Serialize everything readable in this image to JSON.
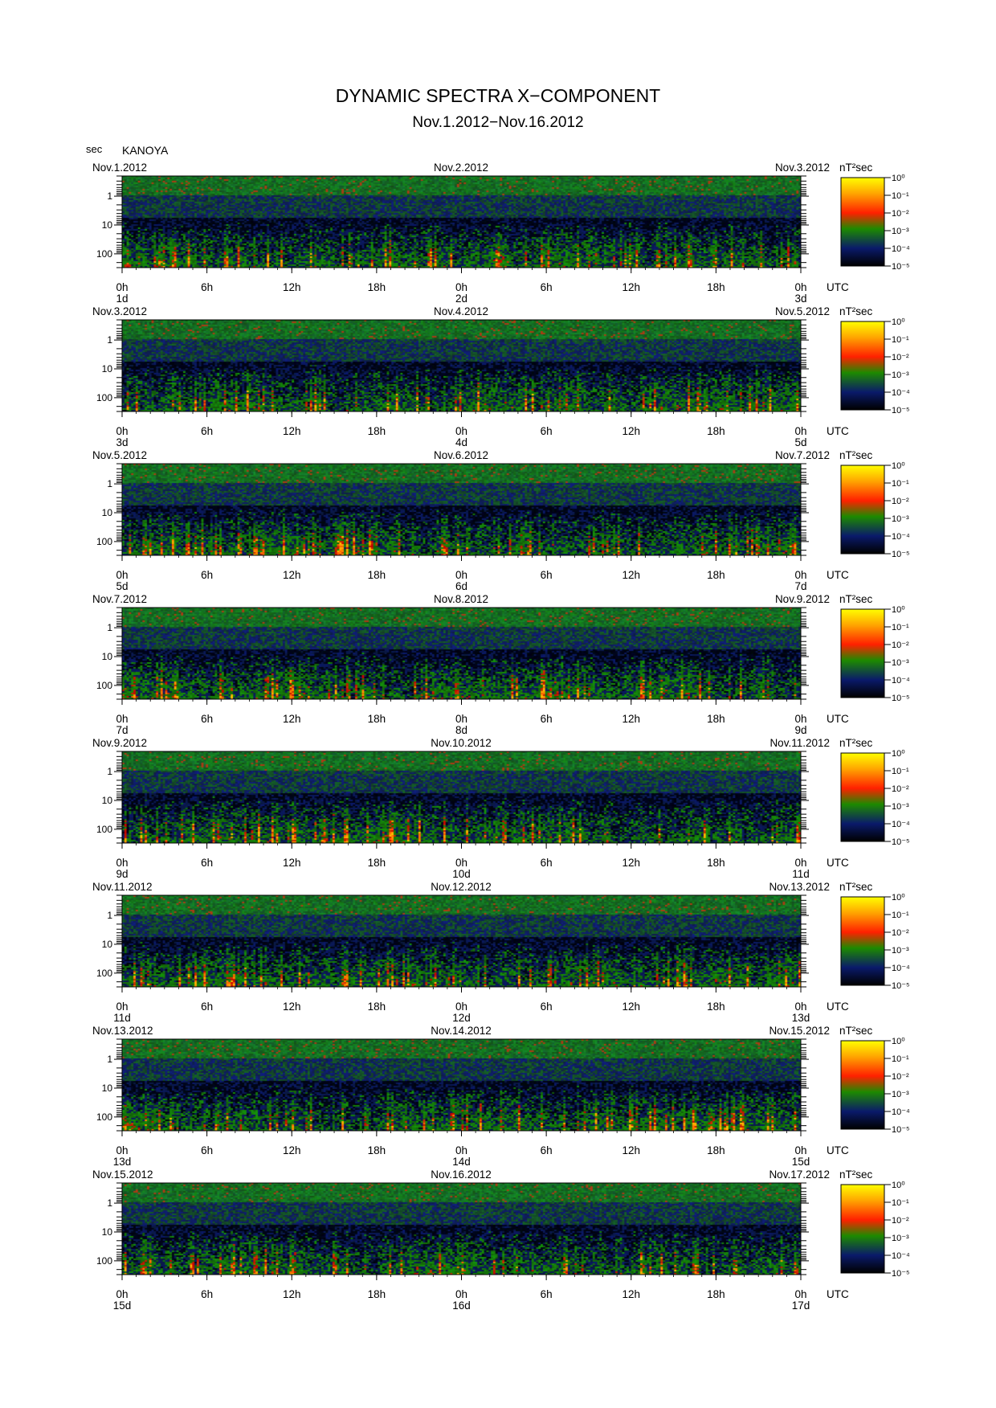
{
  "header": {
    "title": "DYNAMIC SPECTRA X−COMPONENT",
    "subtitle": "Nov.1.2012−Nov.16.2012",
    "period_unit": "sec",
    "station": "KANOYA"
  },
  "chart_data": {
    "type": "heatmap",
    "component": "X",
    "x_axis_unit": "UTC",
    "x_tick_labels": [
      "0h",
      "6h",
      "12h",
      "18h",
      "0h",
      "6h",
      "12h",
      "18h",
      "0h"
    ],
    "y_axis": {
      "label": "sec",
      "scale": "log",
      "range": [
        0.2,
        300
      ],
      "tick_labels": [
        "1",
        "10",
        "100"
      ],
      "inverted": true
    },
    "colorbar": {
      "unit": "nT²sec",
      "scale": "log",
      "tick_labels": [
        "10⁰",
        "10⁻¹",
        "10⁻²",
        "10⁻³",
        "10⁻⁴",
        "10⁻⁵"
      ],
      "colors": [
        "#ffff00",
        "#ffa500",
        "#ff2000",
        "#1d8a00",
        "#0a1a6a",
        "#000000"
      ]
    },
    "panels": [
      {
        "date_left": "Nov.1.2012",
        "date_mid": "Nov.2.2012",
        "date_right": "Nov.3.2012",
        "day_left": "1d",
        "day_mid": "2d",
        "day_right": "3d"
      },
      {
        "date_left": "Nov.3.2012",
        "date_mid": "Nov.4.2012",
        "date_right": "Nov.5.2012",
        "day_left": "3d",
        "day_mid": "4d",
        "day_right": "5d"
      },
      {
        "date_left": "Nov.5.2012",
        "date_mid": "Nov.6.2012",
        "date_right": "Nov.7.2012",
        "day_left": "5d",
        "day_mid": "6d",
        "day_right": "7d"
      },
      {
        "date_left": "Nov.7.2012",
        "date_mid": "Nov.8.2012",
        "date_right": "Nov.9.2012",
        "day_left": "7d",
        "day_mid": "8d",
        "day_right": "9d"
      },
      {
        "date_left": "Nov.9.2012",
        "date_mid": "Nov.10.2012",
        "date_right": "Nov.11.2012",
        "day_left": "9d",
        "day_mid": "10d",
        "day_right": "11d"
      },
      {
        "date_left": "Nov.11.2012",
        "date_mid": "Nov.12.2012",
        "date_right": "Nov.13.2012",
        "day_left": "11d",
        "day_mid": "12d",
        "day_right": "13d"
      },
      {
        "date_left": "Nov.13.2012",
        "date_mid": "Nov.14.2012",
        "date_right": "Nov.15.2012",
        "day_left": "13d",
        "day_mid": "14d",
        "day_right": "15d"
      },
      {
        "date_left": "Nov.15.2012",
        "date_mid": "Nov.16.2012",
        "date_right": "Nov.17.2012",
        "day_left": "15d",
        "day_mid": "16d",
        "day_right": "17d"
      }
    ]
  }
}
